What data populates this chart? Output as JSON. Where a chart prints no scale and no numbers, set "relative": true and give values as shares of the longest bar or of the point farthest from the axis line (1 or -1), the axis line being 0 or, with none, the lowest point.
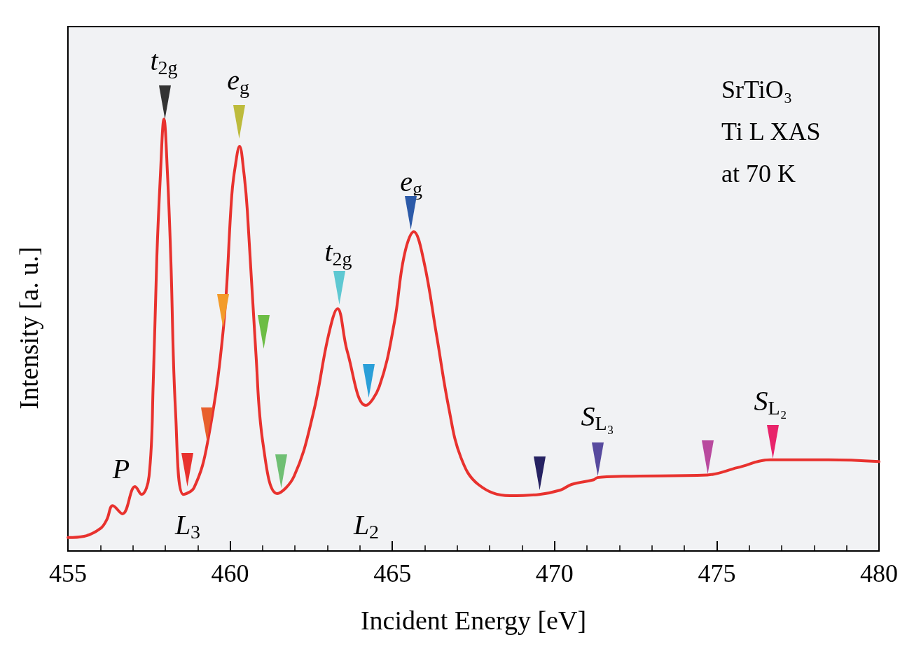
{
  "chart_data": {
    "type": "line",
    "relative": true,
    "xlabel": "Incident Energy [eV]",
    "ylabel": "Intensity [a. u.]",
    "xlim": [
      455,
      480
    ],
    "xticks": [
      455,
      460,
      465,
      470,
      475,
      480
    ],
    "line_style": "solid",
    "annotations": [
      "t$_{2g}$",
      "e$_{g}$",
      "t$_{2g}$",
      "e$_{g}$",
      "P",
      "L$_{3}$",
      "L$_{2}$",
      "S$_{L₃}$",
      "S$_{L₂}$",
      "SrTiO₃",
      "Ti L XAS",
      "at 70 K"
    ],
    "series": [
      {
        "color": "#e8322e",
        "marker": "none",
        "x": [
          455,
          455.5,
          456.0,
          456.2,
          456.38,
          456.68,
          457.07,
          457.27,
          457.5,
          457.63,
          457.74,
          457.85,
          457.96,
          458.07,
          458.17,
          458.32,
          458.56,
          458.89,
          459.3,
          459.79,
          460.05,
          460.15,
          460.29,
          460.42,
          460.53,
          460.79,
          461.02,
          461.45,
          461.97,
          462.56,
          463.03,
          463.31,
          463.61,
          464.18,
          464.6,
          465.06,
          465.36,
          465.66,
          465.97,
          466.36,
          466.74,
          467.11,
          467.65,
          468.62,
          469.53,
          470.18,
          470.52,
          471.21,
          471.32,
          472.12,
          474.71,
          475.64,
          476.65,
          478.45,
          480
        ],
        "values": [
          0.031,
          0.034,
          0.052,
          0.073,
          0.105,
          0.086,
          0.149,
          0.131,
          0.173,
          0.391,
          0.679,
          0.87,
          1.0,
          0.87,
          0.679,
          0.318,
          0.131,
          0.147,
          0.25,
          0.514,
          0.823,
          0.887,
          0.937,
          0.878,
          0.788,
          0.462,
          0.245,
          0.133,
          0.173,
          0.318,
          0.499,
          0.561,
          0.462,
          0.337,
          0.381,
          0.528,
          0.682,
          0.739,
          0.671,
          0.501,
          0.331,
          0.217,
          0.154,
          0.128,
          0.131,
          0.141,
          0.154,
          0.165,
          0.17,
          0.173,
          0.176,
          0.193,
          0.211,
          0.211,
          0.207
        ]
      }
    ]
  }
}
